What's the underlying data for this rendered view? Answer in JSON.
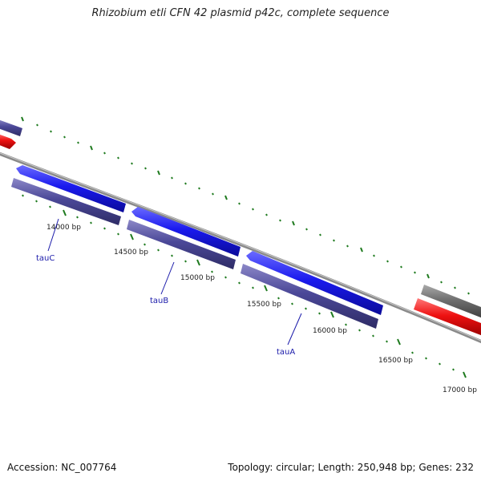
{
  "title": "Rhizobium etli CFN 42 plasmid p42c, complete sequence",
  "accession": "Accession: NC_007764",
  "topology": "Topology: circular; Length: 250,948 bp; Genes: 232",
  "colors": {
    "backbone": "#8a8a8a",
    "forward_gene": "#1a1aee",
    "reverse_gene": "#4b4898",
    "red_feature": "#ee1111",
    "gray_feature": "#707070",
    "tick": "#1e7a1e",
    "gene_label": "#1a1aaa"
  },
  "tick_labels": [
    {
      "text": "14000 bp"
    },
    {
      "text": "14500 bp"
    },
    {
      "text": "15000 bp"
    },
    {
      "text": "15500 bp"
    },
    {
      "text": "16000 bp"
    },
    {
      "text": "16500 bp"
    },
    {
      "text": "17000 bp"
    }
  ],
  "gene_labels": [
    {
      "text": "tauC"
    },
    {
      "text": "tauB"
    },
    {
      "text": "tauA"
    }
  ]
}
